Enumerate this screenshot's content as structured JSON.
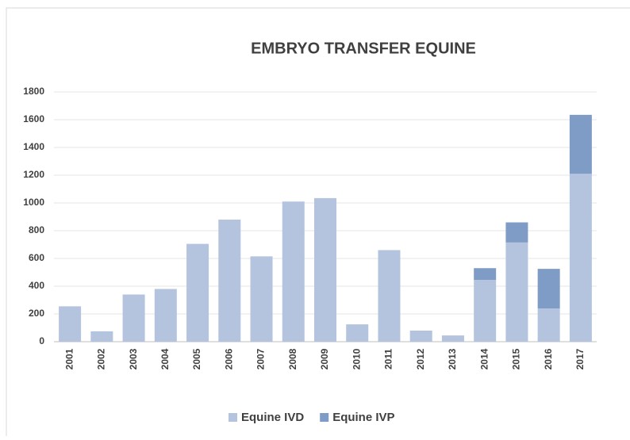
{
  "chart_data": {
    "type": "stacked_bar",
    "title": "EMBRYO TRANSFER EQUINE",
    "categories": [
      "2001",
      "2002",
      "2003",
      "2004",
      "2005",
      "2006",
      "2007",
      "2008",
      "2009",
      "2010",
      "2011",
      "2012",
      "2013",
      "2014",
      "2015",
      "2016",
      "2017"
    ],
    "series": [
      {
        "name": "Equine IVD",
        "color": "#b4c3de",
        "values": [
          255,
          75,
          340,
          380,
          705,
          880,
          615,
          1010,
          1035,
          125,
          660,
          80,
          45,
          445,
          715,
          240,
          1210
        ]
      },
      {
        "name": "Equine IVP",
        "color": "#7f9cc6",
        "values": [
          0,
          0,
          0,
          0,
          0,
          0,
          0,
          0,
          0,
          0,
          0,
          0,
          0,
          85,
          145,
          285,
          425
        ]
      }
    ],
    "ylim": [
      0,
      1800
    ],
    "yticks": [
      0,
      200,
      400,
      600,
      800,
      1000,
      1200,
      1400,
      1600,
      1800
    ],
    "grid": true,
    "legend": "bottom"
  }
}
